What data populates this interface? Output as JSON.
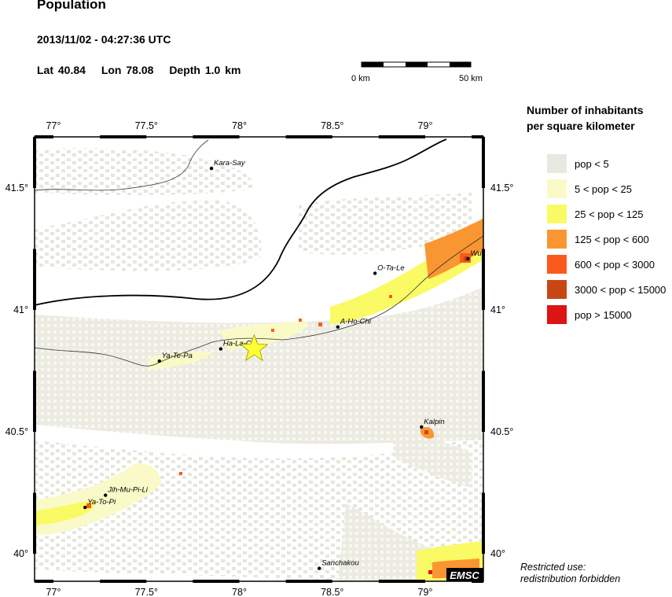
{
  "header": {
    "title": "Population",
    "datetime": "2013/11/02 - 04:27:36 UTC",
    "lat_label": "Lat 40.84",
    "lon_label": "Lon 78.08",
    "depth_label": "Depth 1.0 km"
  },
  "scale_bar": {
    "start_label": "0 km",
    "end_label": "50 km"
  },
  "map": {
    "lon_ticks": [
      "77°",
      "77.5°",
      "78°",
      "78.5°",
      "79°"
    ],
    "lat_ticks": [
      "41.5°",
      "41°",
      "40.5°",
      "40°"
    ],
    "logo": "EMSC",
    "epicenter": {
      "lat": 40.84,
      "lon": 78.08,
      "icon": "star-icon",
      "color": "#ffff33"
    },
    "places": [
      {
        "name": "Kara-Say",
        "lon": 77.85,
        "lat": 41.58
      },
      {
        "name": "O-Ta-Le",
        "lon": 78.73,
        "lat": 41.15
      },
      {
        "name": "Wu",
        "lon": 79.23,
        "lat": 41.21
      },
      {
        "name": "A-Ho-Chi",
        "lon": 78.53,
        "lat": 40.93
      },
      {
        "name": "Ha-La-Chi",
        "lon": 77.9,
        "lat": 40.84
      },
      {
        "name": "Ya-Te-Pa",
        "lon": 77.57,
        "lat": 40.79
      },
      {
        "name": "Kalpin",
        "lon": 78.98,
        "lat": 40.52
      },
      {
        "name": "Jih-Mu-Pi-Li",
        "lon": 77.28,
        "lat": 40.24
      },
      {
        "name": "Ya-To-Pi",
        "lon": 77.17,
        "lat": 40.19
      },
      {
        "name": "Sanchakou",
        "lon": 78.43,
        "lat": 39.94
      }
    ]
  },
  "legend": {
    "title_line1": "Number of inhabitants",
    "title_line2": "per square kilometer",
    "items": [
      {
        "label": "pop < 5",
        "color": "#e8e8e0"
      },
      {
        "label": "5 < pop < 25",
        "color": "#fafac8"
      },
      {
        "label": "25 < pop < 125",
        "color": "#fafa64"
      },
      {
        "label": "125 < pop < 600",
        "color": "#fa9632"
      },
      {
        "label": "600 < pop < 3000",
        "color": "#fa5a1e"
      },
      {
        "label": "3000 < pop < 15000",
        "color": "#c84614"
      },
      {
        "label": "pop > 15000",
        "color": "#dc1414"
      }
    ]
  },
  "footer": {
    "restricted_line1": "Restricted use:",
    "restricted_line2": "redistribution forbidden"
  }
}
